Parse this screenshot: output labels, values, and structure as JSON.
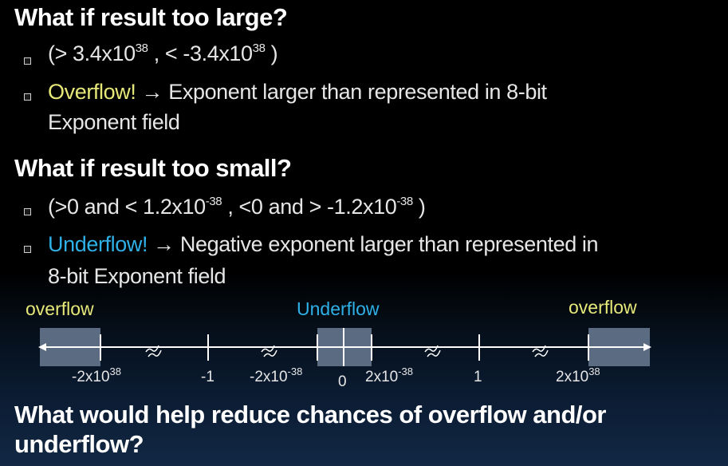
{
  "slide": {
    "heading1": "What if result too large?",
    "b1": {
      "pre": "(> 3.4x10",
      "exp1": "38",
      "mid": " , < -3.4x10",
      "exp2": "38",
      "post": " )"
    },
    "b2": {
      "highlight": "Overflow!",
      "rest": " → Exponent larger than represented in 8-bit",
      "cont": "Exponent field"
    },
    "heading2": "What if result too small?",
    "b3": {
      "pre": "(>0 and < 1.2x10",
      "exp1": "-38",
      "mid": " , <0 and > -1.2x10",
      "exp2": "-38",
      "post": " )"
    },
    "b4": {
      "highlight": "Underflow!",
      "rest": " → Negative exponent larger than represented in",
      "cont": "8-bit Exponent field"
    },
    "heading3_line1": "What would help reduce chances of overflow and/or",
    "heading3_line2": "underflow?"
  },
  "number_line": {
    "labels": {
      "overflow_left": "overflow",
      "underflow": "Underflow",
      "overflow_right": "overflow"
    },
    "ticks": [
      {
        "base": "-2x10",
        "exp": "38"
      },
      {
        "base": "-1",
        "exp": ""
      },
      {
        "base": "-2x10",
        "exp": "-38"
      },
      {
        "base": "0",
        "exp": ""
      },
      {
        "base": "2x10",
        "exp": "-38"
      },
      {
        "base": "1",
        "exp": ""
      },
      {
        "base": "2x10",
        "exp": "38"
      }
    ],
    "colors": {
      "overflow_label": "#e6e878",
      "underflow_label": "#2fb0e6",
      "region_fill": "#5b6b82",
      "axis": "#ffffff"
    }
  }
}
